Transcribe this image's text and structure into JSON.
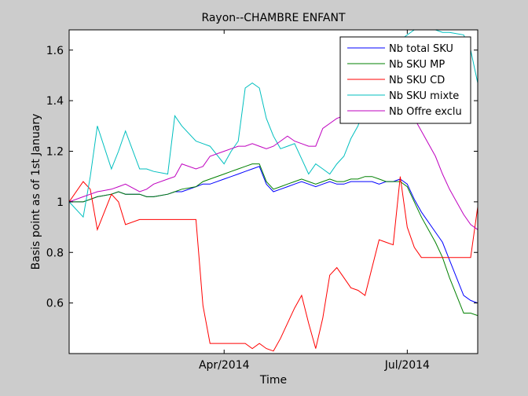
{
  "chart_data": {
    "type": "line",
    "title": "Rayon--CHAMBRE ENFANT",
    "xlabel": "Time",
    "ylabel": "Basis point as of 1st January",
    "ylim": [
      0.4,
      1.68
    ],
    "xlim": [
      0,
      29
    ],
    "x_tick_labels": [
      {
        "x": 11,
        "label": "Apr/2014"
      },
      {
        "x": 24,
        "label": "Jul/2014"
      }
    ],
    "y_ticks": [
      0.6,
      0.8,
      1.0,
      1.2,
      1.4,
      1.6
    ],
    "y_tick_labels": [
      "0.6",
      "0.8",
      "1",
      "1.2",
      "1.4",
      "1.6"
    ],
    "grid": false,
    "legend_position": "top-right",
    "x": [
      0,
      1,
      1.5,
      2,
      3,
      3.5,
      4,
      5,
      5.5,
      6,
      7,
      7.5,
      8,
      9,
      9.5,
      10,
      11,
      11.5,
      12,
      12.5,
      13,
      13.5,
      14,
      14.5,
      15,
      15.5,
      16,
      16.5,
      17,
      17.5,
      18,
      18.5,
      19,
      19.5,
      20,
      20.5,
      21,
      21.5,
      22,
      22.5,
      23,
      23.5,
      24,
      24.5,
      25,
      26,
      26.5,
      27,
      28,
      28.5,
      29
    ],
    "series": [
      {
        "name": "Nb total SKU",
        "color": "#0000ff",
        "values": [
          1.0,
          1.0,
          1.01,
          1.02,
          1.03,
          1.04,
          1.03,
          1.03,
          1.02,
          1.02,
          1.03,
          1.04,
          1.04,
          1.06,
          1.07,
          1.07,
          1.09,
          1.1,
          1.11,
          1.12,
          1.13,
          1.14,
          1.07,
          1.04,
          1.05,
          1.06,
          1.07,
          1.08,
          1.07,
          1.06,
          1.07,
          1.08,
          1.07,
          1.07,
          1.08,
          1.08,
          1.08,
          1.08,
          1.07,
          1.08,
          1.08,
          1.09,
          1.07,
          1.01,
          0.96,
          0.88,
          0.84,
          0.77,
          0.63,
          0.61,
          0.6
        ]
      },
      {
        "name": "Nb SKU MP",
        "color": "#008000",
        "values": [
          1.0,
          1.0,
          1.01,
          1.02,
          1.03,
          1.04,
          1.03,
          1.03,
          1.02,
          1.02,
          1.03,
          1.04,
          1.05,
          1.06,
          1.08,
          1.09,
          1.11,
          1.12,
          1.13,
          1.14,
          1.15,
          1.15,
          1.08,
          1.05,
          1.06,
          1.07,
          1.08,
          1.09,
          1.08,
          1.07,
          1.08,
          1.09,
          1.08,
          1.08,
          1.09,
          1.09,
          1.1,
          1.1,
          1.09,
          1.08,
          1.08,
          1.08,
          1.06,
          1.0,
          0.94,
          0.84,
          0.78,
          0.7,
          0.56,
          0.56,
          0.55
        ]
      },
      {
        "name": "Nb SKU CD",
        "color": "#ff0000",
        "values": [
          1.0,
          1.08,
          1.05,
          0.89,
          1.03,
          1.0,
          0.91,
          0.93,
          0.93,
          0.93,
          0.93,
          0.93,
          0.93,
          0.93,
          0.59,
          0.44,
          0.44,
          0.44,
          0.44,
          0.44,
          0.42,
          0.44,
          0.42,
          0.41,
          0.46,
          0.52,
          0.58,
          0.63,
          0.52,
          0.42,
          0.54,
          0.71,
          0.74,
          0.7,
          0.66,
          0.65,
          0.63,
          0.74,
          0.85,
          0.84,
          0.83,
          1.1,
          0.9,
          0.82,
          0.78,
          0.78,
          0.78,
          0.78,
          0.78,
          0.78,
          0.98
        ]
      },
      {
        "name": "Nb SKU mixte",
        "color": "#00bfbf",
        "values": [
          1.0,
          0.94,
          1.1,
          1.3,
          1.13,
          1.2,
          1.28,
          1.13,
          1.13,
          1.12,
          1.11,
          1.34,
          1.3,
          1.24,
          1.23,
          1.22,
          1.15,
          1.2,
          1.24,
          1.45,
          1.47,
          1.45,
          1.33,
          1.26,
          1.21,
          1.22,
          1.23,
          1.17,
          1.11,
          1.15,
          1.13,
          1.11,
          1.15,
          1.18,
          1.25,
          1.3,
          1.38,
          1.48,
          1.58,
          1.6,
          1.62,
          1.64,
          1.66,
          1.68,
          1.68,
          1.68,
          1.67,
          1.67,
          1.66,
          1.6,
          1.47
        ]
      },
      {
        "name": "Nb Offre exclu",
        "color": "#bf00bf",
        "values": [
          1.0,
          1.02,
          1.03,
          1.04,
          1.05,
          1.06,
          1.07,
          1.04,
          1.05,
          1.07,
          1.09,
          1.1,
          1.15,
          1.13,
          1.14,
          1.18,
          1.2,
          1.21,
          1.22,
          1.22,
          1.23,
          1.22,
          1.21,
          1.22,
          1.24,
          1.26,
          1.24,
          1.23,
          1.22,
          1.22,
          1.29,
          1.31,
          1.33,
          1.34,
          1.36,
          1.38,
          1.4,
          1.42,
          1.43,
          1.44,
          1.44,
          1.44,
          1.38,
          1.33,
          1.28,
          1.18,
          1.11,
          1.05,
          0.95,
          0.91,
          0.89
        ]
      }
    ]
  }
}
